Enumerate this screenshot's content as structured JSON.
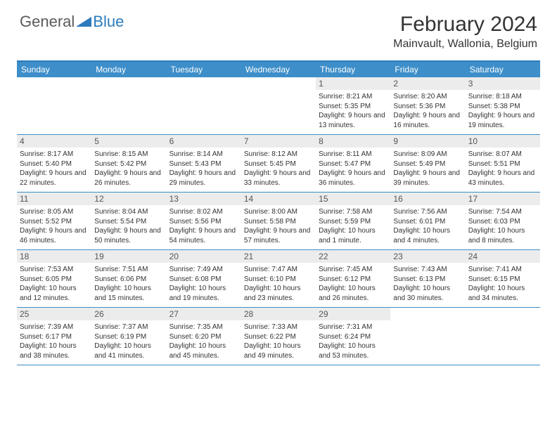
{
  "logo": {
    "general": "General",
    "blue": "Blue"
  },
  "title": "February 2024",
  "location": "Mainvault, Wallonia, Belgium",
  "colors": {
    "header_bar": "#3d8ec9",
    "border": "#2b7bbd",
    "daynum_bg": "#ececec",
    "text": "#333333",
    "logo_gray": "#5a5a5a",
    "logo_blue": "#2b7bbd"
  },
  "weekdays": [
    "Sunday",
    "Monday",
    "Tuesday",
    "Wednesday",
    "Thursday",
    "Friday",
    "Saturday"
  ],
  "weeks": [
    [
      null,
      null,
      null,
      null,
      {
        "n": "1",
        "sr": "8:21 AM",
        "ss": "5:35 PM",
        "dl": "9 hours and 13 minutes."
      },
      {
        "n": "2",
        "sr": "8:20 AM",
        "ss": "5:36 PM",
        "dl": "9 hours and 16 minutes."
      },
      {
        "n": "3",
        "sr": "8:18 AM",
        "ss": "5:38 PM",
        "dl": "9 hours and 19 minutes."
      }
    ],
    [
      {
        "n": "4",
        "sr": "8:17 AM",
        "ss": "5:40 PM",
        "dl": "9 hours and 22 minutes."
      },
      {
        "n": "5",
        "sr": "8:15 AM",
        "ss": "5:42 PM",
        "dl": "9 hours and 26 minutes."
      },
      {
        "n": "6",
        "sr": "8:14 AM",
        "ss": "5:43 PM",
        "dl": "9 hours and 29 minutes."
      },
      {
        "n": "7",
        "sr": "8:12 AM",
        "ss": "5:45 PM",
        "dl": "9 hours and 33 minutes."
      },
      {
        "n": "8",
        "sr": "8:11 AM",
        "ss": "5:47 PM",
        "dl": "9 hours and 36 minutes."
      },
      {
        "n": "9",
        "sr": "8:09 AM",
        "ss": "5:49 PM",
        "dl": "9 hours and 39 minutes."
      },
      {
        "n": "10",
        "sr": "8:07 AM",
        "ss": "5:51 PM",
        "dl": "9 hours and 43 minutes."
      }
    ],
    [
      {
        "n": "11",
        "sr": "8:05 AM",
        "ss": "5:52 PM",
        "dl": "9 hours and 46 minutes."
      },
      {
        "n": "12",
        "sr": "8:04 AM",
        "ss": "5:54 PM",
        "dl": "9 hours and 50 minutes."
      },
      {
        "n": "13",
        "sr": "8:02 AM",
        "ss": "5:56 PM",
        "dl": "9 hours and 54 minutes."
      },
      {
        "n": "14",
        "sr": "8:00 AM",
        "ss": "5:58 PM",
        "dl": "9 hours and 57 minutes."
      },
      {
        "n": "15",
        "sr": "7:58 AM",
        "ss": "5:59 PM",
        "dl": "10 hours and 1 minute."
      },
      {
        "n": "16",
        "sr": "7:56 AM",
        "ss": "6:01 PM",
        "dl": "10 hours and 4 minutes."
      },
      {
        "n": "17",
        "sr": "7:54 AM",
        "ss": "6:03 PM",
        "dl": "10 hours and 8 minutes."
      }
    ],
    [
      {
        "n": "18",
        "sr": "7:53 AM",
        "ss": "6:05 PM",
        "dl": "10 hours and 12 minutes."
      },
      {
        "n": "19",
        "sr": "7:51 AM",
        "ss": "6:06 PM",
        "dl": "10 hours and 15 minutes."
      },
      {
        "n": "20",
        "sr": "7:49 AM",
        "ss": "6:08 PM",
        "dl": "10 hours and 19 minutes."
      },
      {
        "n": "21",
        "sr": "7:47 AM",
        "ss": "6:10 PM",
        "dl": "10 hours and 23 minutes."
      },
      {
        "n": "22",
        "sr": "7:45 AM",
        "ss": "6:12 PM",
        "dl": "10 hours and 26 minutes."
      },
      {
        "n": "23",
        "sr": "7:43 AM",
        "ss": "6:13 PM",
        "dl": "10 hours and 30 minutes."
      },
      {
        "n": "24",
        "sr": "7:41 AM",
        "ss": "6:15 PM",
        "dl": "10 hours and 34 minutes."
      }
    ],
    [
      {
        "n": "25",
        "sr": "7:39 AM",
        "ss": "6:17 PM",
        "dl": "10 hours and 38 minutes."
      },
      {
        "n": "26",
        "sr": "7:37 AM",
        "ss": "6:19 PM",
        "dl": "10 hours and 41 minutes."
      },
      {
        "n": "27",
        "sr": "7:35 AM",
        "ss": "6:20 PM",
        "dl": "10 hours and 45 minutes."
      },
      {
        "n": "28",
        "sr": "7:33 AM",
        "ss": "6:22 PM",
        "dl": "10 hours and 49 minutes."
      },
      {
        "n": "29",
        "sr": "7:31 AM",
        "ss": "6:24 PM",
        "dl": "10 hours and 53 minutes."
      },
      null,
      null
    ]
  ],
  "labels": {
    "sunrise": "Sunrise: ",
    "sunset": "Sunset: ",
    "daylight": "Daylight: "
  }
}
